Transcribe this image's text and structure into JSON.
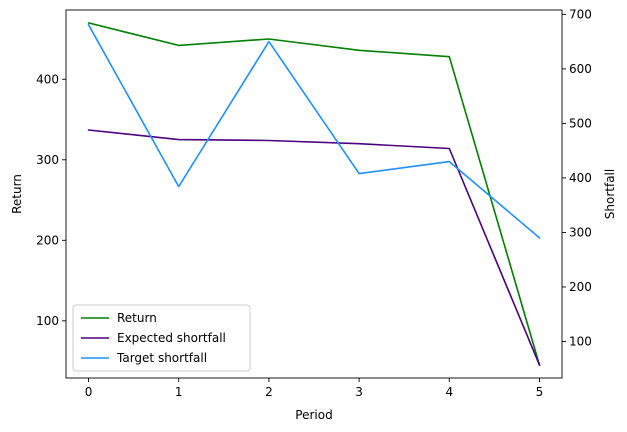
{
  "chart_data": {
    "type": "line",
    "title": "",
    "x": [
      0,
      1,
      2,
      3,
      4,
      5
    ],
    "xlabel": "Period",
    "ylabel": "Return",
    "y2label": "Shortfall",
    "xlim": [
      -0.25,
      5.25
    ],
    "ylim": [
      29,
      486
    ],
    "y2lim": [
      33,
      708
    ],
    "xticks": [
      0,
      1,
      2,
      3,
      4,
      5
    ],
    "yticks": [
      100,
      200,
      300,
      400
    ],
    "y2ticks": [
      100,
      200,
      300,
      400,
      500,
      600,
      700
    ],
    "grid": false,
    "legend_position": "lower-left",
    "series": [
      {
        "name": "Return",
        "axis": "left",
        "color": "#008000",
        "values": [
          470,
          442,
          450,
          436,
          428,
          45
        ]
      },
      {
        "name": "Expected shortfall",
        "axis": "left",
        "color": "#4b0082",
        "values": [
          337,
          325,
          324,
          320,
          314,
          45
        ]
      },
      {
        "name": "Target shortfall",
        "axis": "right",
        "color": "#1e90ff",
        "values": [
          681,
          384,
          650,
          408,
          430,
          290
        ]
      }
    ]
  }
}
